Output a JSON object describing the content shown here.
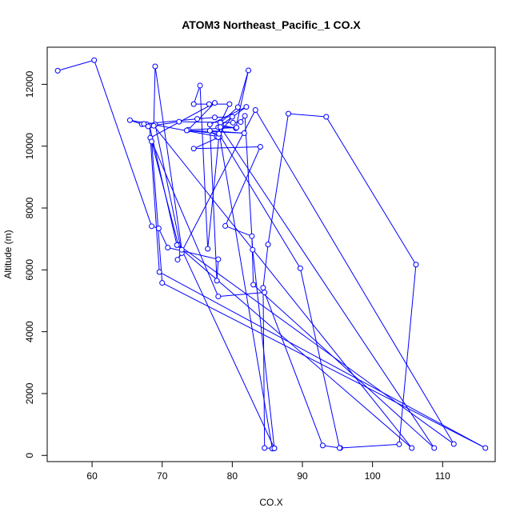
{
  "chart_data": {
    "type": "line",
    "title": "ATOM3 Northeast_Pacific_1 CO.X",
    "xlabel": "CO.X",
    "ylabel": "Altitude (m)",
    "xlim": [
      53.6,
      117.5
    ],
    "ylim": [
      -200,
      13200
    ],
    "xticks": [
      "60",
      "70",
      "80",
      "90",
      "100",
      "110"
    ],
    "yticks": [
      "0",
      "2000",
      "4000",
      "6000",
      "8000",
      "10000",
      "12000"
    ],
    "xtick_values": [
      60,
      70,
      80,
      90,
      100,
      110
    ],
    "ytick_values": [
      0,
      2000,
      4000,
      6000,
      8000,
      10000,
      12000
    ],
    "series": [
      {
        "color": "#0000ff",
        "marker": "open-circle",
        "x": [
          55.1,
          60.3,
          68.5,
          69.5,
          70.8,
          78.0,
          77.8,
          76.8,
          82.0,
          78.4,
          80.5,
          82.3,
          80.8,
          78.3,
          76.5,
          75.4,
          74.5,
          76.7,
          79.6,
          78.0,
          85.7,
          86.0,
          84.6,
          84.4,
          85.1,
          88.0,
          93.4,
          106.2,
          103.8,
          95.4,
          92.9,
          84.6,
          78.0,
          68.3,
          77.5,
          73.7,
          80.6,
          78.3,
          108.8,
          83.0,
          82.8,
          79.0,
          84.0,
          74.5,
          78.2,
          65.4,
          67.1,
          67.8,
          69.0,
          72.8,
          72.2,
          83.3,
          111.6,
          72.3,
          68.5,
          70.0,
          116.1,
          69.6,
          68.2,
          72.1,
          105.6,
          68.8,
          69.0,
          72.8,
          86.0,
          82.9,
          81.8,
          81.2,
          80.1,
          72.4,
          68.0,
          67.4,
          75.0,
          77.5,
          80.0,
          77.8,
          78.0,
          76.8,
          81.7,
          73.5,
          78.1,
          89.7,
          95.3
        ],
        "y": [
          12440,
          12780,
          7410,
          7340,
          6720,
          6340,
          5650,
          10700,
          11270,
          10680,
          10580,
          12450,
          11260,
          10760,
          6680,
          11960,
          11360,
          11360,
          11360,
          10610,
          220,
          230,
          240,
          5420,
          6820,
          11050,
          10950,
          6170,
          360,
          240,
          320,
          5270,
          5140,
          10270,
          11400,
          10530,
          10600,
          10620,
          240,
          5520,
          7090,
          7420,
          9980,
          9920,
          10300,
          10840,
          10710,
          10710,
          10700,
          6540,
          6330,
          11170,
          370,
          6810,
          10150,
          5580,
          240,
          5930,
          10660,
          6800,
          240,
          10660,
          12580,
          6650,
          230,
          6650,
          10980,
          10780,
          10760,
          10790,
          10640,
          10720,
          10880,
          10930,
          10950,
          10300,
          10290,
          10500,
          10420,
          10510,
          10400,
          6050,
          240
        ]
      }
    ]
  }
}
